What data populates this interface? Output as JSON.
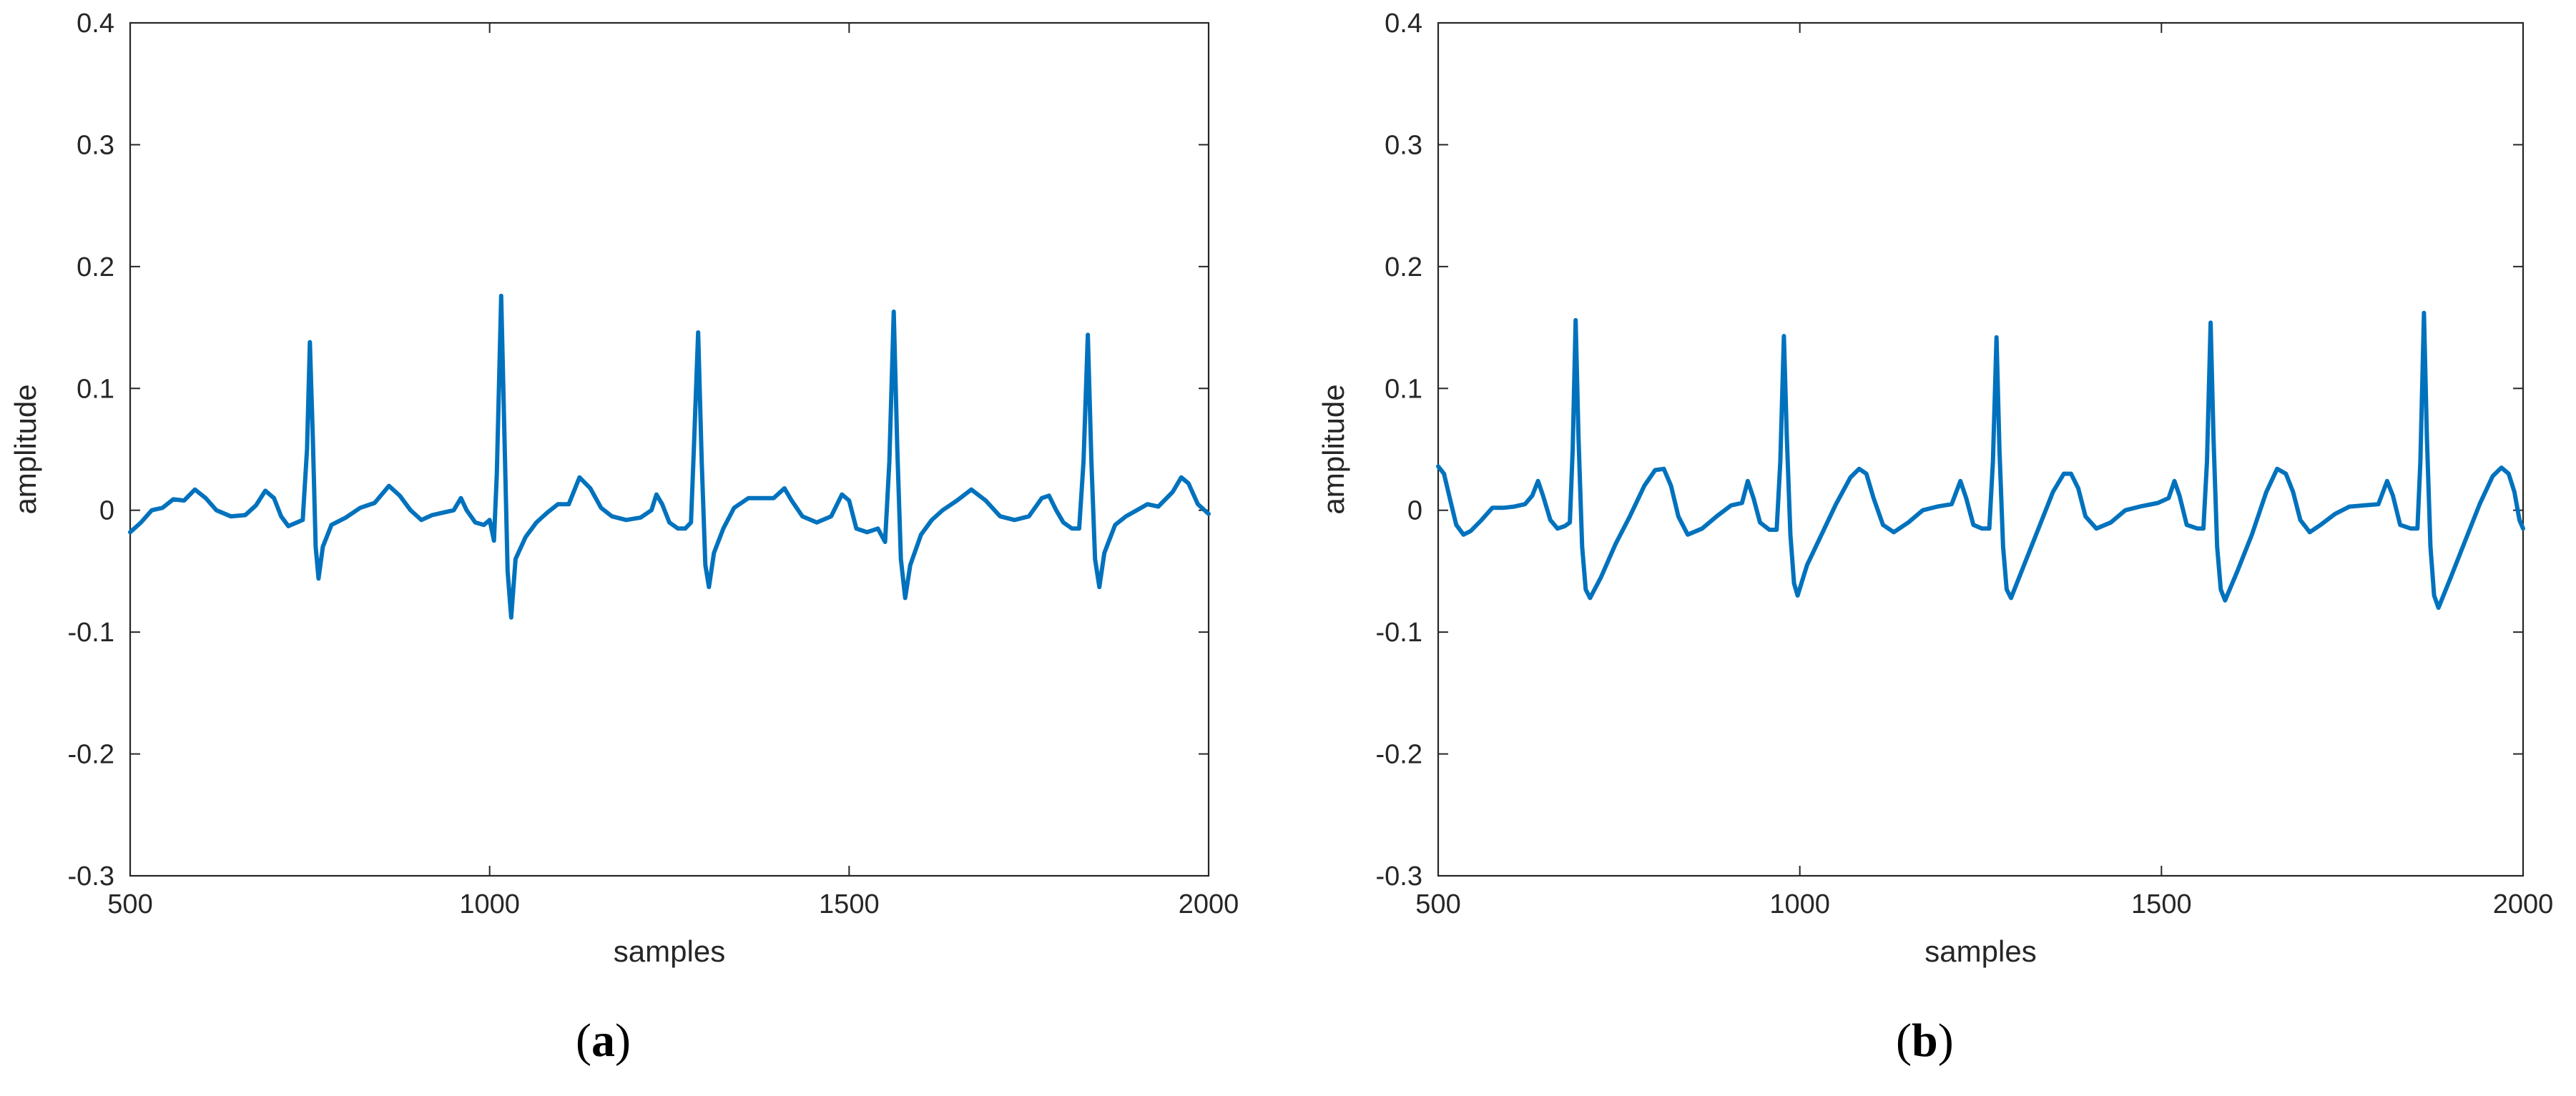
{
  "chart_data": [
    {
      "type": "line",
      "panel_label": "a",
      "xlabel": "samples",
      "ylabel": "amplitude",
      "xlim": [
        500,
        2000
      ],
      "ylim": [
        -0.3,
        0.4
      ],
      "xticks": [
        "500",
        "1000",
        "1500",
        "2000"
      ],
      "yticks": [
        "-0.3",
        "-0.2",
        "-0.1",
        "0",
        "0.1",
        "0.2",
        "0.3",
        "0.4"
      ],
      "grid": false,
      "line_color": "#0072BD",
      "series": [
        {
          "points": [
            [
              500,
              -0.018
            ],
            [
              515,
              -0.01
            ],
            [
              530,
              0.0
            ],
            [
              545,
              0.002
            ],
            [
              560,
              0.009
            ],
            [
              575,
              0.008
            ],
            [
              590,
              0.017
            ],
            [
              605,
              0.01
            ],
            [
              620,
              0.0
            ],
            [
              640,
              -0.005
            ],
            [
              660,
              -0.004
            ],
            [
              675,
              0.004
            ],
            [
              688,
              0.016
            ],
            [
              700,
              0.01
            ],
            [
              710,
              -0.005
            ],
            [
              720,
              -0.013
            ],
            [
              732,
              -0.01
            ],
            [
              740,
              -0.008
            ],
            [
              746,
              0.05
            ],
            [
              750,
              0.138
            ],
            [
              754,
              0.06
            ],
            [
              758,
              -0.03
            ],
            [
              762,
              -0.056
            ],
            [
              768,
              -0.03
            ],
            [
              780,
              -0.012
            ],
            [
              800,
              -0.006
            ],
            [
              820,
              0.002
            ],
            [
              840,
              0.006
            ],
            [
              860,
              0.02
            ],
            [
              875,
              0.012
            ],
            [
              890,
              0.0
            ],
            [
              905,
              -0.008
            ],
            [
              920,
              -0.004
            ],
            [
              935,
              -0.002
            ],
            [
              950,
              0.0
            ],
            [
              960,
              0.01
            ],
            [
              968,
              0.0
            ],
            [
              980,
              -0.01
            ],
            [
              992,
              -0.012
            ],
            [
              1000,
              -0.008
            ],
            [
              1006,
              -0.025
            ],
            [
              1010,
              0.03
            ],
            [
              1016,
              0.176
            ],
            [
              1021,
              0.05
            ],
            [
              1025,
              -0.05
            ],
            [
              1030,
              -0.088
            ],
            [
              1036,
              -0.04
            ],
            [
              1050,
              -0.022
            ],
            [
              1065,
              -0.01
            ],
            [
              1080,
              -0.002
            ],
            [
              1095,
              0.005
            ],
            [
              1110,
              0.005
            ],
            [
              1125,
              0.027
            ],
            [
              1140,
              0.018
            ],
            [
              1155,
              0.002
            ],
            [
              1170,
              -0.005
            ],
            [
              1190,
              -0.008
            ],
            [
              1210,
              -0.006
            ],
            [
              1225,
              0.0
            ],
            [
              1232,
              0.013
            ],
            [
              1240,
              0.005
            ],
            [
              1250,
              -0.01
            ],
            [
              1262,
              -0.015
            ],
            [
              1272,
              -0.015
            ],
            [
              1280,
              -0.01
            ],
            [
              1284,
              0.05
            ],
            [
              1290,
              0.146
            ],
            [
              1295,
              0.04
            ],
            [
              1300,
              -0.045
            ],
            [
              1305,
              -0.063
            ],
            [
              1312,
              -0.035
            ],
            [
              1325,
              -0.015
            ],
            [
              1340,
              0.002
            ],
            [
              1360,
              0.01
            ],
            [
              1380,
              0.01
            ],
            [
              1395,
              0.01
            ],
            [
              1410,
              0.018
            ],
            [
              1420,
              0.008
            ],
            [
              1435,
              -0.005
            ],
            [
              1455,
              -0.01
            ],
            [
              1475,
              -0.005
            ],
            [
              1490,
              0.013
            ],
            [
              1500,
              0.008
            ],
            [
              1510,
              -0.015
            ],
            [
              1525,
              -0.018
            ],
            [
              1540,
              -0.015
            ],
            [
              1550,
              -0.026
            ],
            [
              1556,
              0.04
            ],
            [
              1562,
              0.163
            ],
            [
              1567,
              0.05
            ],
            [
              1572,
              -0.04
            ],
            [
              1578,
              -0.072
            ],
            [
              1585,
              -0.045
            ],
            [
              1600,
              -0.02
            ],
            [
              1615,
              -0.008
            ],
            [
              1630,
              0.0
            ],
            [
              1650,
              0.008
            ],
            [
              1670,
              0.017
            ],
            [
              1690,
              0.008
            ],
            [
              1710,
              -0.005
            ],
            [
              1730,
              -0.008
            ],
            [
              1750,
              -0.005
            ],
            [
              1768,
              0.01
            ],
            [
              1778,
              0.012
            ],
            [
              1788,
              0.0
            ],
            [
              1798,
              -0.01
            ],
            [
              1810,
              -0.015
            ],
            [
              1820,
              -0.015
            ],
            [
              1826,
              0.04
            ],
            [
              1832,
              0.144
            ],
            [
              1837,
              0.04
            ],
            [
              1842,
              -0.04
            ],
            [
              1848,
              -0.063
            ],
            [
              1855,
              -0.035
            ],
            [
              1870,
              -0.012
            ],
            [
              1885,
              -0.005
            ],
            [
              1900,
              0.0
            ],
            [
              1915,
              0.005
            ],
            [
              1930,
              0.003
            ],
            [
              1950,
              0.015
            ],
            [
              1962,
              0.027
            ],
            [
              1972,
              0.022
            ],
            [
              1985,
              0.005
            ],
            [
              2000,
              -0.003
            ]
          ]
        }
      ]
    },
    {
      "type": "line",
      "panel_label": "b",
      "xlabel": "samples",
      "ylabel": "amplitude",
      "xlim": [
        500,
        2000
      ],
      "ylim": [
        -0.3,
        0.4
      ],
      "xticks": [
        "500",
        "1000",
        "1500",
        "2000"
      ],
      "yticks": [
        "-0.3",
        "-0.2",
        "-0.1",
        "0",
        "0.1",
        "0.2",
        "0.3",
        "0.4"
      ],
      "grid": false,
      "line_color": "#0072BD",
      "series": [
        {
          "points": [
            [
              500,
              0.036
            ],
            [
              508,
              0.03
            ],
            [
              516,
              0.01
            ],
            [
              525,
              -0.012
            ],
            [
              535,
              -0.02
            ],
            [
              545,
              -0.017
            ],
            [
              560,
              -0.008
            ],
            [
              575,
              0.002
            ],
            [
              590,
              0.002
            ],
            [
              605,
              0.003
            ],
            [
              620,
              0.005
            ],
            [
              630,
              0.012
            ],
            [
              638,
              0.024
            ],
            [
              645,
              0.012
            ],
            [
              655,
              -0.008
            ],
            [
              665,
              -0.015
            ],
            [
              675,
              -0.013
            ],
            [
              682,
              -0.01
            ],
            [
              686,
              0.05
            ],
            [
              690,
              0.156
            ],
            [
              694,
              0.06
            ],
            [
              699,
              -0.03
            ],
            [
              704,
              -0.065
            ],
            [
              710,
              -0.072
            ],
            [
              725,
              -0.055
            ],
            [
              745,
              -0.028
            ],
            [
              765,
              -0.005
            ],
            [
              785,
              0.02
            ],
            [
              800,
              0.033
            ],
            [
              812,
              0.034
            ],
            [
              822,
              0.02
            ],
            [
              832,
              -0.005
            ],
            [
              845,
              -0.02
            ],
            [
              865,
              -0.015
            ],
            [
              885,
              -0.005
            ],
            [
              905,
              0.004
            ],
            [
              920,
              0.006
            ],
            [
              928,
              0.024
            ],
            [
              936,
              0.01
            ],
            [
              945,
              -0.01
            ],
            [
              958,
              -0.016
            ],
            [
              968,
              -0.016
            ],
            [
              973,
              0.04
            ],
            [
              978,
              0.143
            ],
            [
              982,
              0.06
            ],
            [
              987,
              -0.02
            ],
            [
              992,
              -0.06
            ],
            [
              997,
              -0.07
            ],
            [
              1010,
              -0.045
            ],
            [
              1030,
              -0.02
            ],
            [
              1050,
              0.005
            ],
            [
              1070,
              0.027
            ],
            [
              1082,
              0.034
            ],
            [
              1092,
              0.03
            ],
            [
              1102,
              0.01
            ],
            [
              1115,
              -0.012
            ],
            [
              1130,
              -0.018
            ],
            [
              1150,
              -0.01
            ],
            [
              1170,
              0.0
            ],
            [
              1190,
              0.003
            ],
            [
              1210,
              0.005
            ],
            [
              1222,
              0.024
            ],
            [
              1230,
              0.01
            ],
            [
              1240,
              -0.012
            ],
            [
              1252,
              -0.015
            ],
            [
              1262,
              -0.015
            ],
            [
              1267,
              0.04
            ],
            [
              1272,
              0.142
            ],
            [
              1276,
              0.05
            ],
            [
              1281,
              -0.03
            ],
            [
              1286,
              -0.065
            ],
            [
              1292,
              -0.072
            ],
            [
              1310,
              -0.045
            ],
            [
              1330,
              -0.015
            ],
            [
              1350,
              0.015
            ],
            [
              1365,
              0.03
            ],
            [
              1375,
              0.03
            ],
            [
              1385,
              0.018
            ],
            [
              1395,
              -0.005
            ],
            [
              1410,
              -0.015
            ],
            [
              1430,
              -0.01
            ],
            [
              1450,
              0.0
            ],
            [
              1470,
              0.003
            ],
            [
              1495,
              0.006
            ],
            [
              1510,
              0.01
            ],
            [
              1518,
              0.024
            ],
            [
              1525,
              0.012
            ],
            [
              1535,
              -0.012
            ],
            [
              1550,
              -0.015
            ],
            [
              1558,
              -0.015
            ],
            [
              1563,
              0.04
            ],
            [
              1568,
              0.154
            ],
            [
              1572,
              0.06
            ],
            [
              1577,
              -0.03
            ],
            [
              1582,
              -0.065
            ],
            [
              1588,
              -0.074
            ],
            [
              1605,
              -0.05
            ],
            [
              1625,
              -0.02
            ],
            [
              1645,
              0.015
            ],
            [
              1660,
              0.034
            ],
            [
              1672,
              0.03
            ],
            [
              1682,
              0.015
            ],
            [
              1692,
              -0.008
            ],
            [
              1705,
              -0.018
            ],
            [
              1720,
              -0.012
            ],
            [
              1740,
              -0.003
            ],
            [
              1760,
              0.003
            ],
            [
              1780,
              0.004
            ],
            [
              1800,
              0.005
            ],
            [
              1812,
              0.024
            ],
            [
              1820,
              0.012
            ],
            [
              1830,
              -0.012
            ],
            [
              1845,
              -0.015
            ],
            [
              1854,
              -0.015
            ],
            [
              1858,
              0.04
            ],
            [
              1863,
              0.162
            ],
            [
              1867,
              0.06
            ],
            [
              1872,
              -0.03
            ],
            [
              1877,
              -0.07
            ],
            [
              1883,
              -0.08
            ],
            [
              1900,
              -0.055
            ],
            [
              1920,
              -0.025
            ],
            [
              1940,
              0.005
            ],
            [
              1958,
              0.028
            ],
            [
              1970,
              0.035
            ],
            [
              1980,
              0.03
            ],
            [
              1988,
              0.015
            ],
            [
              1995,
              -0.008
            ],
            [
              2000,
              -0.015
            ]
          ]
        }
      ]
    }
  ],
  "captions": {
    "a": "a",
    "b": "b"
  }
}
